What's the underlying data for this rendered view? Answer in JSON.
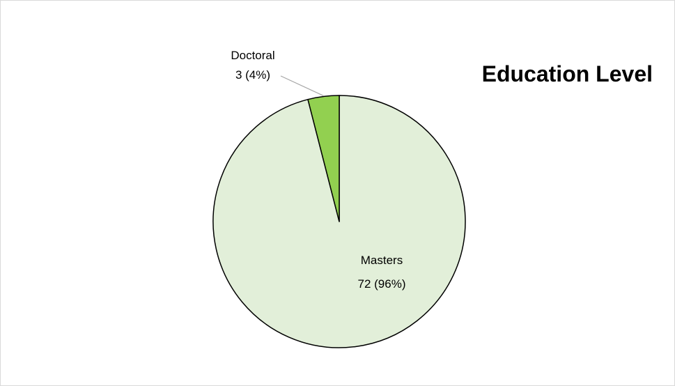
{
  "chart_data": {
    "type": "pie",
    "title": "Education Level",
    "slices": [
      {
        "label": "Masters",
        "value": 72,
        "percent": "96%",
        "color": "#e2efd9"
      },
      {
        "label": "Doctoral",
        "value": 3,
        "percent": "4%",
        "color": "#92d050"
      }
    ],
    "data_labels": [
      {
        "category": "Masters",
        "value_text": "72 (96%)"
      },
      {
        "category": "Doctoral",
        "value_text": "3 (4%)"
      }
    ],
    "slice_border_color": "#000000",
    "leader_line_color": "#a6a6a6"
  }
}
